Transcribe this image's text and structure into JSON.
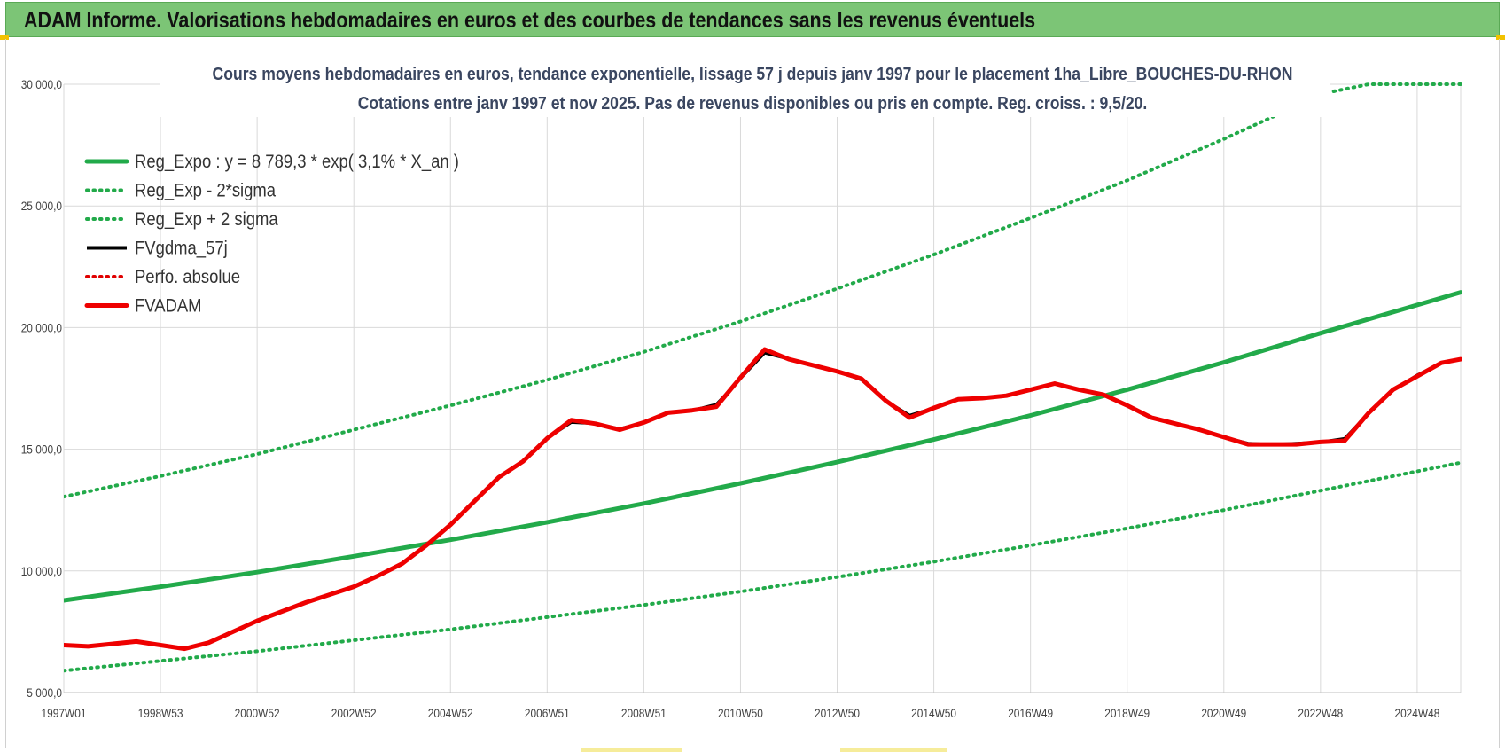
{
  "header": {
    "title": "ADAM Informe. Valorisations hebdomadaires en euros et des courbes de tendances sans les revenus éventuels"
  },
  "chart_data": {
    "type": "line",
    "title": "Cours moyens hebdomadaires en euros, tendance exponentielle, lissage 57 j depuis janv 1997 pour le placement 1ha_Libre_BOUCHES-DU-RHON",
    "subtitle": "Cotations entre janv 1997 et nov 2025. Pas de revenus disponibles ou pris en compte. Reg. croiss. : 9,5/20.",
    "xlabel": "",
    "ylabel": "",
    "ylim": [
      5000,
      30000
    ],
    "xlim": [
      1997.0,
      2025.9
    ],
    "y_ticks": [
      5000,
      10000,
      15000,
      20000,
      25000,
      30000
    ],
    "y_tick_labels": [
      "5 000,0",
      "10 000,0",
      "15 000,0",
      "20 000,0",
      "25 000,0",
      "30 000,0"
    ],
    "x_tick_labels": [
      "1997W01",
      "1998W53",
      "2000W52",
      "2002W52",
      "2004W52",
      "2006W51",
      "2008W51",
      "2010W50",
      "2012W50",
      "2014W50",
      "2016W49",
      "2018W49",
      "2020W49",
      "2022W48",
      "2024W48"
    ],
    "x_tick_positions": [
      1997.0,
      1999.0,
      2001.0,
      2003.0,
      2005.0,
      2007.0,
      2009.0,
      2011.0,
      2013.0,
      2015.0,
      2017.0,
      2019.0,
      2021.0,
      2023.0,
      2025.0
    ],
    "grid": true,
    "legend_position": "top-left",
    "series": [
      {
        "name": "Reg_Expo : y = 8 789,3 * exp( 3,1% *  X_an )",
        "style": "solid-thick",
        "color": "#22aa4a",
        "x": [
          1997.0,
          1999.0,
          2001.0,
          2003.0,
          2005.0,
          2007.0,
          2009.0,
          2011.0,
          2013.0,
          2015.0,
          2017.0,
          2019.0,
          2021.0,
          2023.0,
          2025.9
        ],
        "y": [
          8789,
          9350,
          9950,
          10600,
          11280,
          12000,
          12770,
          13600,
          14470,
          15400,
          16390,
          17450,
          18570,
          19770,
          21450
        ]
      },
      {
        "name": "Reg_Exp - 2*sigma",
        "style": "dotted",
        "color": "#22aa4a",
        "x": [
          1997.0,
          1999.0,
          2001.0,
          2003.0,
          2005.0,
          2007.0,
          2009.0,
          2011.0,
          2013.0,
          2015.0,
          2017.0,
          2019.0,
          2021.0,
          2023.0,
          2025.9
        ],
        "y": [
          5900,
          6300,
          6700,
          7150,
          7600,
          8100,
          8600,
          9150,
          9750,
          10380,
          11050,
          11750,
          12500,
          13300,
          14450
        ]
      },
      {
        "name": "Reg_Exp + 2 sigma",
        "style": "dotted",
        "color": "#22aa4a",
        "x": [
          1997.0,
          1999.0,
          2001.0,
          2003.0,
          2005.0,
          2007.0,
          2009.0,
          2011.0,
          2013.0,
          2015.0,
          2017.0,
          2019.0,
          2021.0,
          2022.5,
          2023.0,
          2024.0,
          2025.9
        ],
        "y": [
          13050,
          13900,
          14800,
          15800,
          16800,
          17850,
          19000,
          20250,
          21600,
          23000,
          24500,
          26050,
          27750,
          29100,
          29600,
          30000,
          30000
        ]
      },
      {
        "name": "FVgdma_57j",
        "style": "solid",
        "color": "#000000",
        "x": [
          1997.0,
          1997.5,
          1998.0,
          1998.5,
          1999.0,
          1999.5,
          2000.0,
          2000.5,
          2001.0,
          2002.0,
          2003.0,
          2003.5,
          2004.0,
          2004.5,
          2005.0,
          2006.0,
          2006.5,
          2007.0,
          2007.5,
          2008.0,
          2008.5,
          2009.0,
          2009.5,
          2010.0,
          2010.5,
          2011.0,
          2011.5,
          2012.0,
          2012.5,
          2013.0,
          2013.5,
          2014.0,
          2014.5,
          2015.0,
          2015.5,
          2016.0,
          2016.5,
          2017.0,
          2017.5,
          2018.0,
          2018.5,
          2019.0,
          2019.5,
          2020.0,
          2020.5,
          2021.0,
          2021.5,
          2022.0,
          2022.5,
          2023.0,
          2023.5,
          2024.0,
          2024.5,
          2025.0,
          2025.5,
          2025.9
        ],
        "y": [
          6950,
          6900,
          7000,
          7100,
          6950,
          6800,
          7050,
          7500,
          7950,
          8700,
          9350,
          9800,
          10300,
          11050,
          11900,
          13850,
          14500,
          15450,
          16100,
          16050,
          15850,
          16100,
          16500,
          16600,
          16850,
          17900,
          18950,
          18700,
          18450,
          18200,
          17850,
          17000,
          16400,
          16700,
          17050,
          17100,
          17200,
          17450,
          17700,
          17450,
          17250,
          16800,
          16300,
          16050,
          15800,
          15500,
          15250,
          15200,
          15250,
          15300,
          15450,
          16500,
          17450,
          18050,
          18550,
          18700
        ]
      },
      {
        "name": "Perfo. absolue",
        "style": "dotted",
        "color": "#e00000",
        "x": [],
        "y": []
      },
      {
        "name": "FVADAM",
        "style": "solid-thick",
        "color": "#ee0000",
        "x": [
          1997.0,
          1997.5,
          1998.0,
          1998.5,
          1999.0,
          1999.5,
          2000.0,
          2000.5,
          2001.0,
          2002.0,
          2003.0,
          2003.5,
          2004.0,
          2004.5,
          2005.0,
          2006.0,
          2006.5,
          2007.0,
          2007.5,
          2008.0,
          2008.5,
          2009.0,
          2009.5,
          2010.0,
          2010.5,
          2011.0,
          2011.5,
          2012.0,
          2012.5,
          2013.0,
          2013.5,
          2014.0,
          2014.5,
          2015.0,
          2015.5,
          2016.0,
          2016.5,
          2017.0,
          2017.5,
          2018.0,
          2018.5,
          2019.0,
          2019.5,
          2020.0,
          2020.5,
          2021.0,
          2021.5,
          2022.0,
          2022.5,
          2023.0,
          2023.5,
          2024.0,
          2024.5,
          2025.0,
          2025.5,
          2025.9
        ],
        "y": [
          6950,
          6900,
          7000,
          7100,
          6950,
          6800,
          7050,
          7500,
          7950,
          8700,
          9350,
          9800,
          10300,
          11050,
          11900,
          13850,
          14500,
          15450,
          16200,
          16050,
          15800,
          16100,
          16500,
          16600,
          16750,
          17950,
          19100,
          18700,
          18450,
          18200,
          17900,
          17000,
          16300,
          16700,
          17050,
          17100,
          17200,
          17450,
          17700,
          17450,
          17250,
          16800,
          16300,
          16050,
          15800,
          15500,
          15200,
          15200,
          15200,
          15300,
          15350,
          16500,
          17450,
          18000,
          18550,
          18700
        ]
      }
    ]
  }
}
